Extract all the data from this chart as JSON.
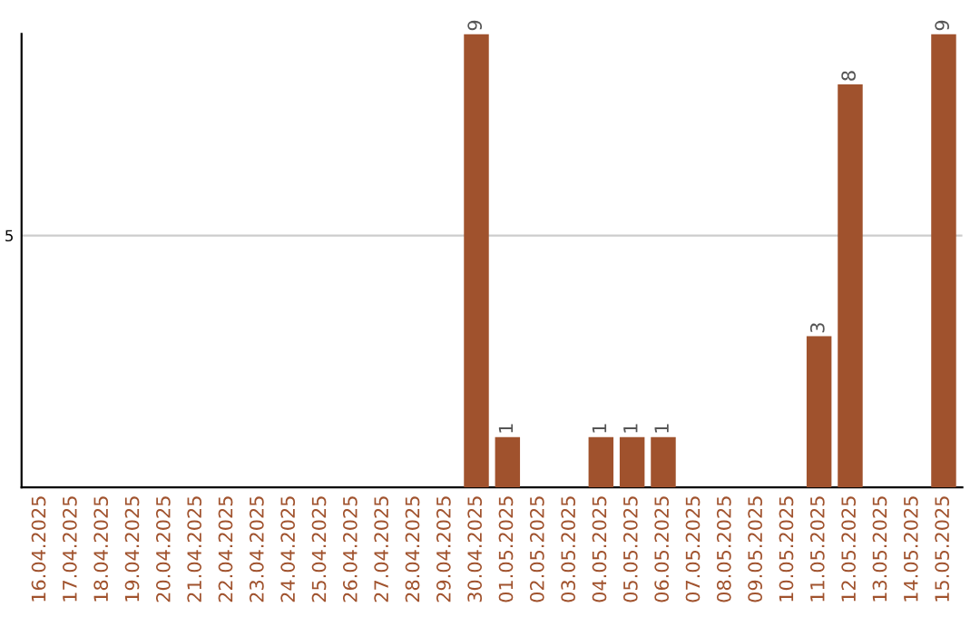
{
  "chart_data": {
    "type": "bar",
    "categories": [
      "16.04.2025",
      "17.04.2025",
      "18.04.2025",
      "19.04.2025",
      "20.04.2025",
      "21.04.2025",
      "22.04.2025",
      "23.04.2025",
      "24.04.2025",
      "25.04.2025",
      "26.04.2025",
      "27.04.2025",
      "28.04.2025",
      "29.04.2025",
      "30.04.2025",
      "01.05.2025",
      "02.05.2025",
      "03.05.2025",
      "04.05.2025",
      "05.05.2025",
      "06.05.2025",
      "07.05.2025",
      "08.05.2025",
      "09.05.2025",
      "10.05.2025",
      "11.05.2025",
      "12.05.2025",
      "13.05.2025",
      "14.05.2025",
      "15.05.2025"
    ],
    "values": [
      null,
      null,
      null,
      null,
      null,
      null,
      null,
      null,
      null,
      null,
      null,
      null,
      null,
      null,
      9,
      1,
      null,
      null,
      1,
      1,
      1,
      null,
      null,
      null,
      null,
      3,
      8,
      null,
      null,
      9
    ],
    "data_labels": true,
    "color": "#a0522d",
    "ylim": [
      0,
      9
    ],
    "yticks": [
      5
    ],
    "grid": "y"
  }
}
